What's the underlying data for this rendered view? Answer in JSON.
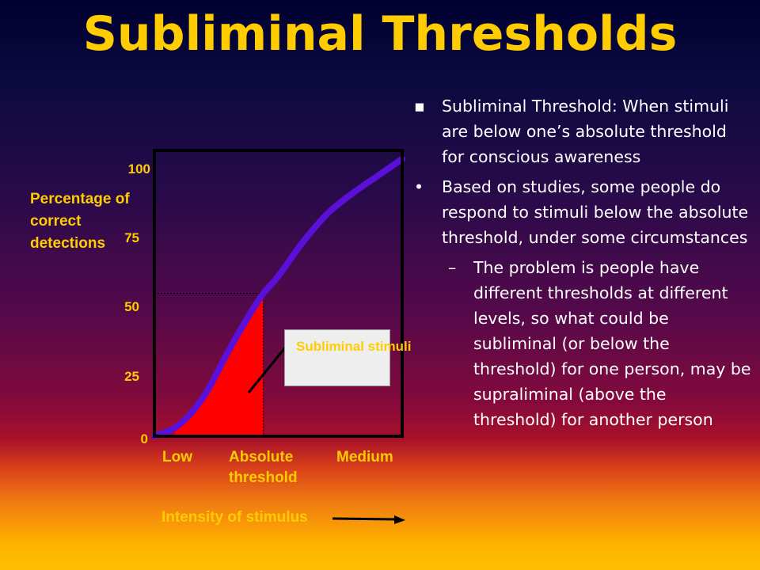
{
  "slide": {
    "title": "Subliminal Thresholds",
    "bullets": [
      {
        "marker": "▪",
        "text": "Subliminal Threshold: When stimuli are below one’s absolute threshold for conscious awareness"
      },
      {
        "marker": "•",
        "text": "Based on studies, some people do respond to stimuli below the absolute threshold, under some circumstances"
      },
      {
        "marker": "–",
        "text": "The problem is people have different thresholds at different levels, so what could be subliminal (or below the threshold) for one person, may be supraliminal (above the threshold) for another person"
      }
    ]
  },
  "chart_data": {
    "type": "line",
    "ylabel": "Percentage of correct detections",
    "xlabel": "Intensity of stimulus",
    "yticks": [
      "100",
      "75",
      "50",
      "25",
      "0"
    ],
    "ytick_values": [
      100,
      75,
      50,
      25,
      0
    ],
    "xtick_low": "Low",
    "xtick_threshold": "Absolute threshold",
    "xtick_medium": "Medium",
    "ylim": [
      0,
      100
    ],
    "xlim": [
      0,
      100
    ],
    "absolute_threshold_x": 44,
    "series": [
      {
        "x": [
          0,
          10,
          20,
          30,
          38,
          44,
          50,
          60,
          70,
          80,
          90,
          100
        ],
        "y": [
          0,
          4,
          14,
          30,
          42,
          50,
          56,
          68,
          78,
          85,
          91,
          97
        ]
      }
    ],
    "shaded_region": {
      "label": "Subliminal stimuli",
      "x_from": 8,
      "x_to": 44,
      "color": "#ff0000"
    },
    "colors": {
      "curve": "#5a10d8",
      "axis": "#000000",
      "text": "#ffcc00"
    },
    "grid": false
  }
}
